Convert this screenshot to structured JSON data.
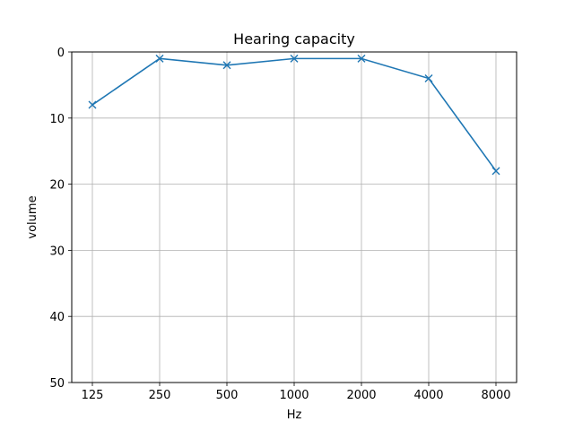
{
  "chart_data": {
    "type": "line",
    "title": "Hearing capacity",
    "xlabel": "Hz",
    "ylabel": "volume",
    "categories": [
      "125",
      "250",
      "500",
      "1000",
      "2000",
      "4000",
      "8000"
    ],
    "series": [
      {
        "values": [
          8,
          1,
          2,
          1,
          1,
          4,
          18
        ],
        "color": "#1f77b4",
        "marker": "x"
      }
    ],
    "ylim": [
      0,
      50
    ],
    "y_inverted": true,
    "y_ticks": [
      "0",
      "10",
      "20",
      "30",
      "40",
      "50"
    ],
    "grid": true
  }
}
